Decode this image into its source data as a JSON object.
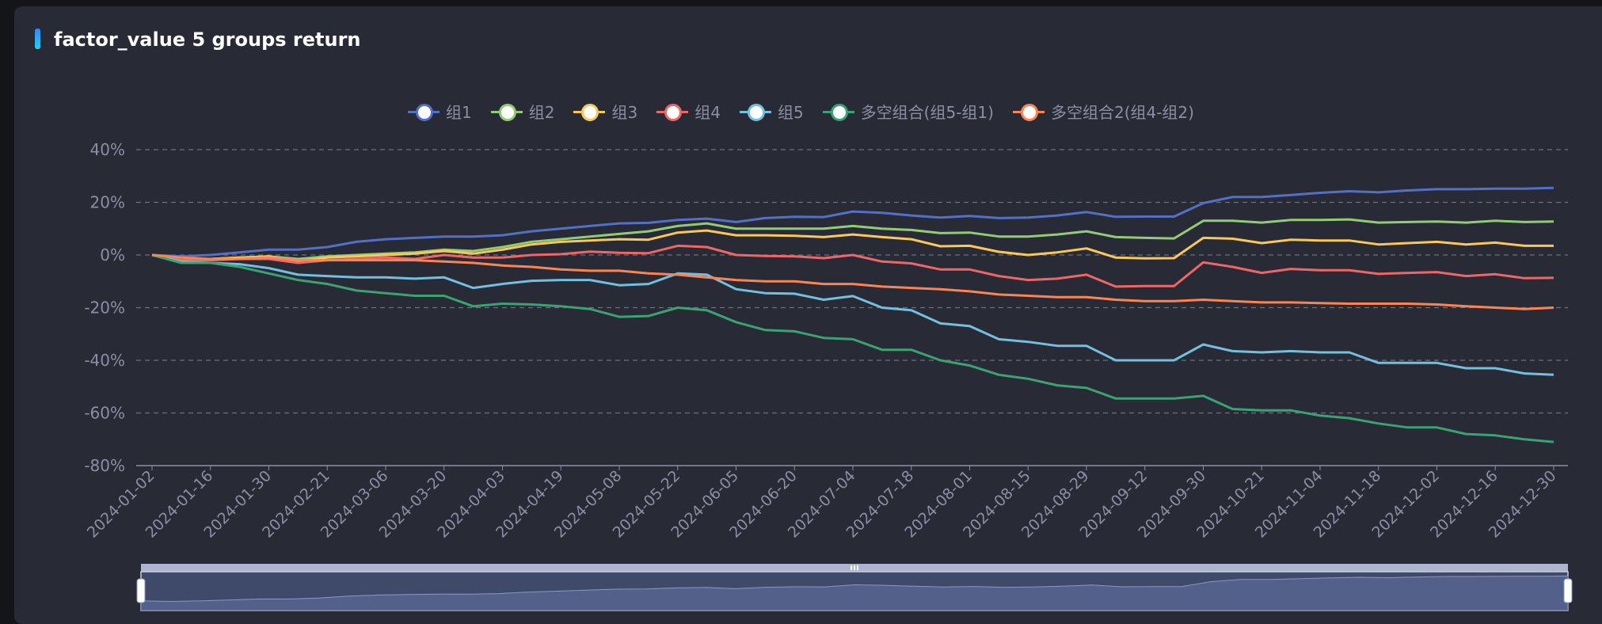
{
  "title": "factor_value 5 groups return",
  "colors": {
    "background": "#282a36",
    "title_accent": "#3b82f6",
    "axis_text": "#8b8fa3",
    "grid": "#6b6f80"
  },
  "chart_data": {
    "type": "line",
    "title": "factor_value 5 groups return",
    "ylim": [
      -0.8,
      0.4
    ],
    "yticks": [
      0.4,
      0.2,
      0,
      -0.2,
      -0.4,
      -0.6,
      -0.8
    ],
    "ytick_labels": [
      "40%",
      "20%",
      "0%",
      "-20%",
      "-40%",
      "-60%",
      "-80%"
    ],
    "grid": true,
    "legend_position": "top",
    "x": [
      "2024-01-02",
      "2024-01-09",
      "2024-01-16",
      "2024-01-23",
      "2024-01-30",
      "2024-02-06",
      "2024-02-21",
      "2024-02-28",
      "2024-03-06",
      "2024-03-13",
      "2024-03-20",
      "2024-03-27",
      "2024-04-03",
      "2024-04-11",
      "2024-04-19",
      "2024-04-26",
      "2024-05-08",
      "2024-05-15",
      "2024-05-22",
      "2024-05-29",
      "2024-06-05",
      "2024-06-13",
      "2024-06-20",
      "2024-06-27",
      "2024-07-04",
      "2024-07-11",
      "2024-07-18",
      "2024-07-25",
      "2024-08-01",
      "2024-08-08",
      "2024-08-15",
      "2024-08-22",
      "2024-08-29",
      "2024-09-05",
      "2024-09-12",
      "2024-09-19",
      "2024-09-30",
      "2024-10-14",
      "2024-10-21",
      "2024-10-28",
      "2024-11-04",
      "2024-11-11",
      "2024-11-18",
      "2024-11-25",
      "2024-12-02",
      "2024-12-09",
      "2024-12-16",
      "2024-12-23",
      "2024-12-30"
    ],
    "xtick_labels": [
      "2024-01-02",
      "2024-01-16",
      "2024-01-30",
      "2024-02-21",
      "2024-03-06",
      "2024-03-20",
      "2024-04-03",
      "2024-04-19",
      "2024-05-08",
      "2024-05-22",
      "2024-06-05",
      "2024-06-20",
      "2024-07-04",
      "2024-07-18",
      "2024-08-01",
      "2024-08-15",
      "2024-08-29",
      "2024-09-12",
      "2024-09-30",
      "2024-10-21",
      "2024-11-04",
      "2024-11-18",
      "2024-12-02",
      "2024-12-16",
      "2024-12-30"
    ],
    "series": [
      {
        "name": "组1",
        "color": "#5470c6",
        "values": [
          0,
          -0.005,
          0,
          0.01,
          0.02,
          0.02,
          0.03,
          0.05,
          0.06,
          0.065,
          0.07,
          0.07,
          0.075,
          0.09,
          0.1,
          0.11,
          0.12,
          0.122,
          0.133,
          0.138,
          0.125,
          0.14,
          0.145,
          0.144,
          0.165,
          0.16,
          0.15,
          0.142,
          0.148,
          0.14,
          0.142,
          0.15,
          0.163,
          0.145,
          0.146,
          0.146,
          0.197,
          0.22,
          0.22,
          0.228,
          0.236,
          0.242,
          0.238,
          0.245,
          0.25,
          0.25,
          0.252,
          0.252,
          0.255
        ]
      },
      {
        "name": "组2",
        "color": "#91cc75",
        "values": [
          0,
          -0.02,
          -0.015,
          -0.01,
          -0.005,
          -0.015,
          -0.005,
          0,
          0.005,
          0.01,
          0.02,
          0.015,
          0.03,
          0.05,
          0.06,
          0.07,
          0.08,
          0.09,
          0.11,
          0.12,
          0.1,
          0.1,
          0.1,
          0.1,
          0.11,
          0.1,
          0.095,
          0.083,
          0.085,
          0.07,
          0.07,
          0.078,
          0.09,
          0.068,
          0.065,
          0.063,
          0.13,
          0.13,
          0.123,
          0.133,
          0.133,
          0.135,
          0.123,
          0.125,
          0.127,
          0.123,
          0.13,
          0.125,
          0.127
        ]
      },
      {
        "name": "组3",
        "color": "#fac858",
        "values": [
          0,
          -0.02,
          -0.015,
          -0.01,
          -0.005,
          -0.025,
          -0.01,
          -0.005,
          0,
          0.005,
          0.015,
          0.005,
          0.02,
          0.04,
          0.05,
          0.055,
          0.06,
          0.058,
          0.085,
          0.093,
          0.075,
          0.075,
          0.073,
          0.068,
          0.078,
          0.068,
          0.06,
          0.033,
          0.035,
          0.012,
          0,
          0.01,
          0.025,
          -0.01,
          -0.013,
          -0.012,
          0.065,
          0.062,
          0.045,
          0.058,
          0.055,
          0.055,
          0.04,
          0.045,
          0.05,
          0.04,
          0.047,
          0.035,
          0.035
        ]
      },
      {
        "name": "组4",
        "color": "#ee6666",
        "values": [
          0,
          -0.02,
          -0.02,
          -0.015,
          -0.015,
          -0.03,
          -0.02,
          -0.015,
          -0.01,
          -0.015,
          0,
          -0.01,
          -0.01,
          0,
          0.003,
          0.013,
          0.008,
          0.007,
          0.035,
          0.03,
          0,
          -0.004,
          -0.005,
          -0.012,
          0,
          -0.025,
          -0.032,
          -0.055,
          -0.055,
          -0.08,
          -0.095,
          -0.09,
          -0.075,
          -0.12,
          -0.118,
          -0.118,
          -0.028,
          -0.045,
          -0.068,
          -0.053,
          -0.058,
          -0.058,
          -0.072,
          -0.068,
          -0.065,
          -0.08,
          -0.073,
          -0.088,
          -0.087
        ]
      },
      {
        "name": "组5",
        "color": "#73c0de",
        "values": [
          0,
          -0.025,
          -0.03,
          -0.035,
          -0.05,
          -0.075,
          -0.08,
          -0.085,
          -0.085,
          -0.09,
          -0.085,
          -0.125,
          -0.11,
          -0.098,
          -0.095,
          -0.095,
          -0.115,
          -0.11,
          -0.07,
          -0.075,
          -0.13,
          -0.145,
          -0.147,
          -0.17,
          -0.156,
          -0.2,
          -0.21,
          -0.26,
          -0.27,
          -0.32,
          -0.33,
          -0.345,
          -0.345,
          -0.4,
          -0.4,
          -0.4,
          -0.34,
          -0.365,
          -0.37,
          -0.365,
          -0.37,
          -0.37,
          -0.41,
          -0.41,
          -0.41,
          -0.43,
          -0.43,
          -0.45,
          -0.455
        ]
      },
      {
        "name": "多空组合(组5-组1)",
        "color": "#3ba272",
        "values": [
          0,
          -0.03,
          -0.03,
          -0.045,
          -0.07,
          -0.095,
          -0.11,
          -0.135,
          -0.145,
          -0.155,
          -0.155,
          -0.195,
          -0.185,
          -0.188,
          -0.195,
          -0.205,
          -0.235,
          -0.232,
          -0.2,
          -0.21,
          -0.255,
          -0.285,
          -0.29,
          -0.315,
          -0.32,
          -0.36,
          -0.36,
          -0.4,
          -0.42,
          -0.455,
          -0.47,
          -0.495,
          -0.505,
          -0.545,
          -0.545,
          -0.545,
          -0.535,
          -0.585,
          -0.59,
          -0.59,
          -0.61,
          -0.62,
          -0.64,
          -0.655,
          -0.655,
          -0.68,
          -0.685,
          -0.7,
          -0.71
        ]
      },
      {
        "name": "多空组合2(组4-组2)",
        "color": "#fc8452",
        "values": [
          0,
          -0.01,
          -0.015,
          -0.015,
          -0.01,
          -0.02,
          -0.02,
          -0.02,
          -0.02,
          -0.02,
          -0.025,
          -0.03,
          -0.04,
          -0.045,
          -0.055,
          -0.06,
          -0.06,
          -0.07,
          -0.075,
          -0.085,
          -0.095,
          -0.1,
          -0.1,
          -0.11,
          -0.11,
          -0.12,
          -0.125,
          -0.13,
          -0.138,
          -0.15,
          -0.155,
          -0.16,
          -0.16,
          -0.17,
          -0.175,
          -0.175,
          -0.17,
          -0.175,
          -0.18,
          -0.18,
          -0.183,
          -0.185,
          -0.185,
          -0.185,
          -0.188,
          -0.195,
          -0.2,
          -0.205,
          -0.2
        ]
      }
    ]
  }
}
